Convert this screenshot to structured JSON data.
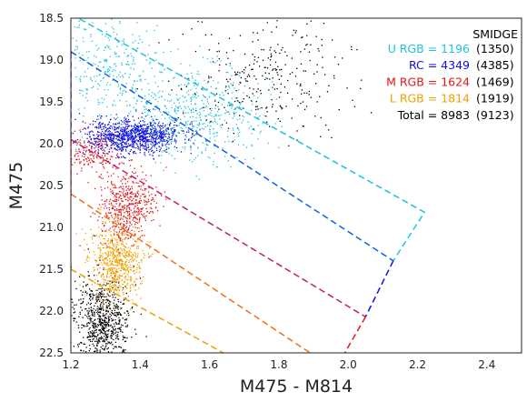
{
  "chart_data": {
    "type": "scatter",
    "title": "",
    "xlabel": "M475 - M814",
    "ylabel": "M475",
    "xlim": [
      1.2,
      2.5
    ],
    "ylim": [
      22.5,
      18.5
    ],
    "y_inverted": true,
    "grid": false,
    "x_ticks": [
      "1.2",
      "1.4",
      "1.6",
      "1.8",
      "2.0",
      "2.2",
      "2.4"
    ],
    "x_tick_values": [
      1.2,
      1.4,
      1.6,
      1.8,
      2.0,
      2.2,
      2.4
    ],
    "y_ticks": [
      "18.5",
      "19.0",
      "19.5",
      "20.0",
      "20.5",
      "21.0",
      "21.5",
      "22.0",
      "22.5"
    ],
    "y_tick_values": [
      18.5,
      19.0,
      19.5,
      20.0,
      20.5,
      21.0,
      21.5,
      22.0,
      22.5
    ],
    "legend": {
      "title": "SMIDGE",
      "placement": "top-right",
      "entries": [
        {
          "label": "U RGB = 1196",
          "paren": "(1350)",
          "color": "#22c3dc"
        },
        {
          "label": "RC = 4349",
          "paren": "(4385)",
          "color": "#1010e0"
        },
        {
          "label": "M RGB = 1624",
          "paren": "(1469)",
          "color": "#e01818"
        },
        {
          "label": "L RGB = 1814",
          "paren": "(1919)",
          "color": "#f0a000"
        },
        {
          "label": "Total = 8983",
          "paren": "(9123)",
          "color": "#000000"
        }
      ]
    },
    "series": [
      {
        "color": "#000000",
        "clusters": [
          {
            "cx": 1.29,
            "cy": 22.1,
            "sx": 0.04,
            "sy": 0.25,
            "n": 700
          },
          {
            "cx": 1.75,
            "cy": 19.2,
            "sx": 0.12,
            "sy": 0.35,
            "n": 300
          }
        ]
      },
      {
        "color": "#f0a000",
        "clusters": [
          {
            "cx": 1.33,
            "cy": 21.4,
            "sx": 0.035,
            "sy": 0.22,
            "n": 650
          }
        ]
      },
      {
        "color": "#e01818",
        "clusters": [
          {
            "cx": 1.36,
            "cy": 20.75,
            "sx": 0.04,
            "sy": 0.22,
            "n": 500
          },
          {
            "cx": 1.25,
            "cy": 20.1,
            "sx": 0.05,
            "sy": 0.12,
            "n": 200
          }
        ]
      },
      {
        "color": "#1010e0",
        "clusters": [
          {
            "cx": 1.38,
            "cy": 19.9,
            "sx": 0.07,
            "sy": 0.1,
            "n": 1000
          }
        ]
      },
      {
        "color": "#22c3dc",
        "clusters": [
          {
            "cx": 1.55,
            "cy": 19.65,
            "sx": 0.1,
            "sy": 0.28,
            "n": 550
          },
          {
            "cx": 1.3,
            "cy": 19.0,
            "sx": 0.07,
            "sy": 0.35,
            "n": 300
          }
        ]
      }
    ],
    "boundary_lines": [
      {
        "color": "#22c3dc",
        "points": [
          [
            1.2,
            18.45
          ],
          [
            2.22,
            20.82
          ],
          [
            2.13,
            21.4
          ]
        ]
      },
      {
        "color": "#1060e0",
        "points": [
          [
            1.2,
            18.9
          ],
          [
            2.13,
            21.4
          ]
        ]
      },
      {
        "color": "#1010e0",
        "points": [
          [
            2.13,
            21.4
          ],
          [
            2.05,
            22.07
          ]
        ]
      },
      {
        "color": "#1010e0",
        "points": [
          [
            1.2,
            18.9
          ],
          [
            1.2,
            19.95
          ]
        ]
      },
      {
        "color": "#c02060",
        "points": [
          [
            1.2,
            19.95
          ],
          [
            2.05,
            22.07
          ]
        ]
      },
      {
        "color": "#e01818",
        "points": [
          [
            2.05,
            22.07
          ],
          [
            1.99,
            22.5
          ]
        ]
      },
      {
        "color": "#e01818",
        "points": [
          [
            1.2,
            19.95
          ],
          [
            1.2,
            20.6
          ]
        ]
      },
      {
        "color": "#f07010",
        "points": [
          [
            1.2,
            20.6
          ],
          [
            1.89,
            22.5
          ]
        ]
      },
      {
        "color": "#f0a000",
        "points": [
          [
            1.2,
            21.5
          ],
          [
            1.64,
            22.5
          ]
        ]
      }
    ]
  }
}
